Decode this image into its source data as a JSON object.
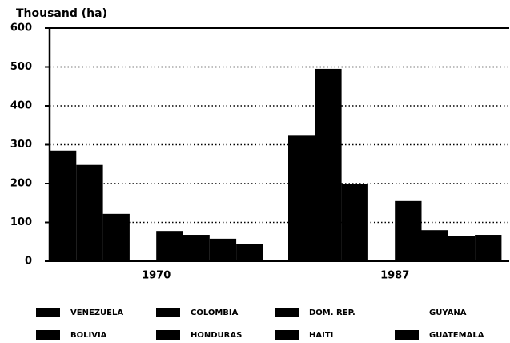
{
  "chart_data": {
    "type": "bar",
    "title": "Thousand (ha)",
    "categories": [
      "1970",
      "1987"
    ],
    "series": [
      {
        "name": "VENEZUELA",
        "color": "#000000",
        "values": [
          285,
          323
        ]
      },
      {
        "name": "COLOMBIA",
        "color": "#000000",
        "values": [
          248,
          495
        ]
      },
      {
        "name": "DOM. REP.",
        "color": "#000000",
        "values": [
          122,
          200
        ]
      },
      {
        "name": "GUYANA",
        "color": "#ffffff",
        "values": [
          0,
          0
        ]
      },
      {
        "name": "BOLIVIA",
        "color": "#000000",
        "values": [
          78,
          155
        ]
      },
      {
        "name": "HONDURAS",
        "color": "#000000",
        "values": [
          68,
          80
        ]
      },
      {
        "name": "HAITI",
        "color": "#000000",
        "values": [
          58,
          65
        ]
      },
      {
        "name": "GUATEMALA",
        "color": "#000000",
        "values": [
          45,
          68
        ]
      }
    ],
    "ylim": [
      0,
      600
    ],
    "yticks": [
      0,
      100,
      200,
      300,
      400,
      500,
      600
    ],
    "grid": true
  }
}
